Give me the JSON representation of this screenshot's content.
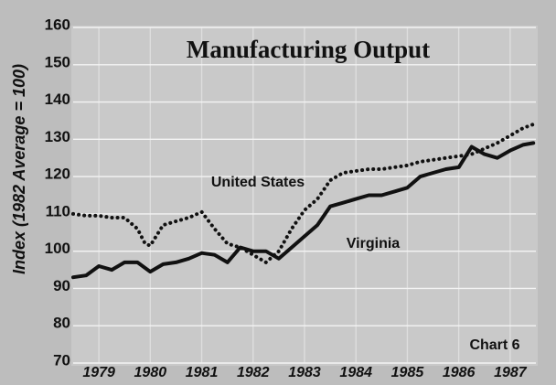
{
  "chart_data": {
    "type": "line",
    "title": "Manufacturing Output",
    "y_label": "Index (1982 Average = 100)",
    "annotations": [
      "United States",
      "Virginia",
      "Chart 6"
    ],
    "xlim": [
      1979,
      1988
    ],
    "xticks": [
      {
        "value": 1979.5,
        "label": "1979"
      },
      {
        "value": 1980.5,
        "label": "1980"
      },
      {
        "value": 1981.5,
        "label": "1981"
      },
      {
        "value": 1982.5,
        "label": "1982"
      },
      {
        "value": 1983.5,
        "label": "1983"
      },
      {
        "value": 1984.5,
        "label": "1984"
      },
      {
        "value": 1985.5,
        "label": "1985"
      },
      {
        "value": 1986.5,
        "label": "1986"
      },
      {
        "value": 1987.5,
        "label": "1987"
      }
    ],
    "ylim": [
      70,
      160
    ],
    "yticks": [
      70,
      80,
      90,
      100,
      110,
      120,
      130,
      140,
      150,
      160
    ],
    "grid": true,
    "series": [
      {
        "name": "United States",
        "color": "#111111",
        "style": "dotted",
        "x": [
          1979.0,
          1979.25,
          1979.5,
          1979.75,
          1980.0,
          1980.25,
          1980.4,
          1980.5,
          1980.75,
          1981.0,
          1981.25,
          1981.5,
          1981.75,
          1982.0,
          1982.25,
          1982.5,
          1982.75,
          1983.0,
          1983.25,
          1983.5,
          1983.75,
          1984.0,
          1984.25,
          1984.5,
          1984.75,
          1985.0,
          1985.25,
          1985.5,
          1985.75,
          1986.0,
          1986.25,
          1986.5,
          1986.75,
          1987.0,
          1987.25,
          1987.5,
          1987.75,
          1987.95
        ],
        "values": [
          110,
          109.5,
          109.5,
          109,
          109,
          106,
          102,
          101.5,
          107,
          108,
          109,
          110.5,
          106,
          102,
          101,
          99,
          97,
          100,
          106,
          111,
          114,
          119,
          121,
          121.5,
          122,
          122,
          122.5,
          123,
          124,
          124.5,
          125,
          125.5,
          126,
          127.5,
          129,
          131,
          133,
          134
        ]
      },
      {
        "name": "Virginia",
        "color": "#111111",
        "style": "solid",
        "x": [
          1979.0,
          1979.25,
          1979.5,
          1979.75,
          1980.0,
          1980.25,
          1980.5,
          1980.75,
          1981.0,
          1981.25,
          1981.5,
          1981.75,
          1982.0,
          1982.25,
          1982.5,
          1982.75,
          1983.0,
          1983.25,
          1983.5,
          1983.75,
          1984.0,
          1984.25,
          1984.5,
          1984.75,
          1985.0,
          1985.25,
          1985.5,
          1985.75,
          1986.0,
          1986.25,
          1986.5,
          1986.75,
          1987.0,
          1987.25,
          1987.5,
          1987.75,
          1987.95
        ],
        "values": [
          93,
          93.5,
          96,
          95,
          97,
          97,
          94.5,
          96.5,
          97,
          98,
          99.5,
          99,
          97,
          101,
          100,
          100,
          98,
          101,
          104,
          107,
          112,
          113,
          114,
          115,
          115,
          116,
          117,
          120,
          121,
          122,
          122.5,
          128,
          126,
          125,
          127,
          128.5,
          129
        ]
      }
    ]
  }
}
